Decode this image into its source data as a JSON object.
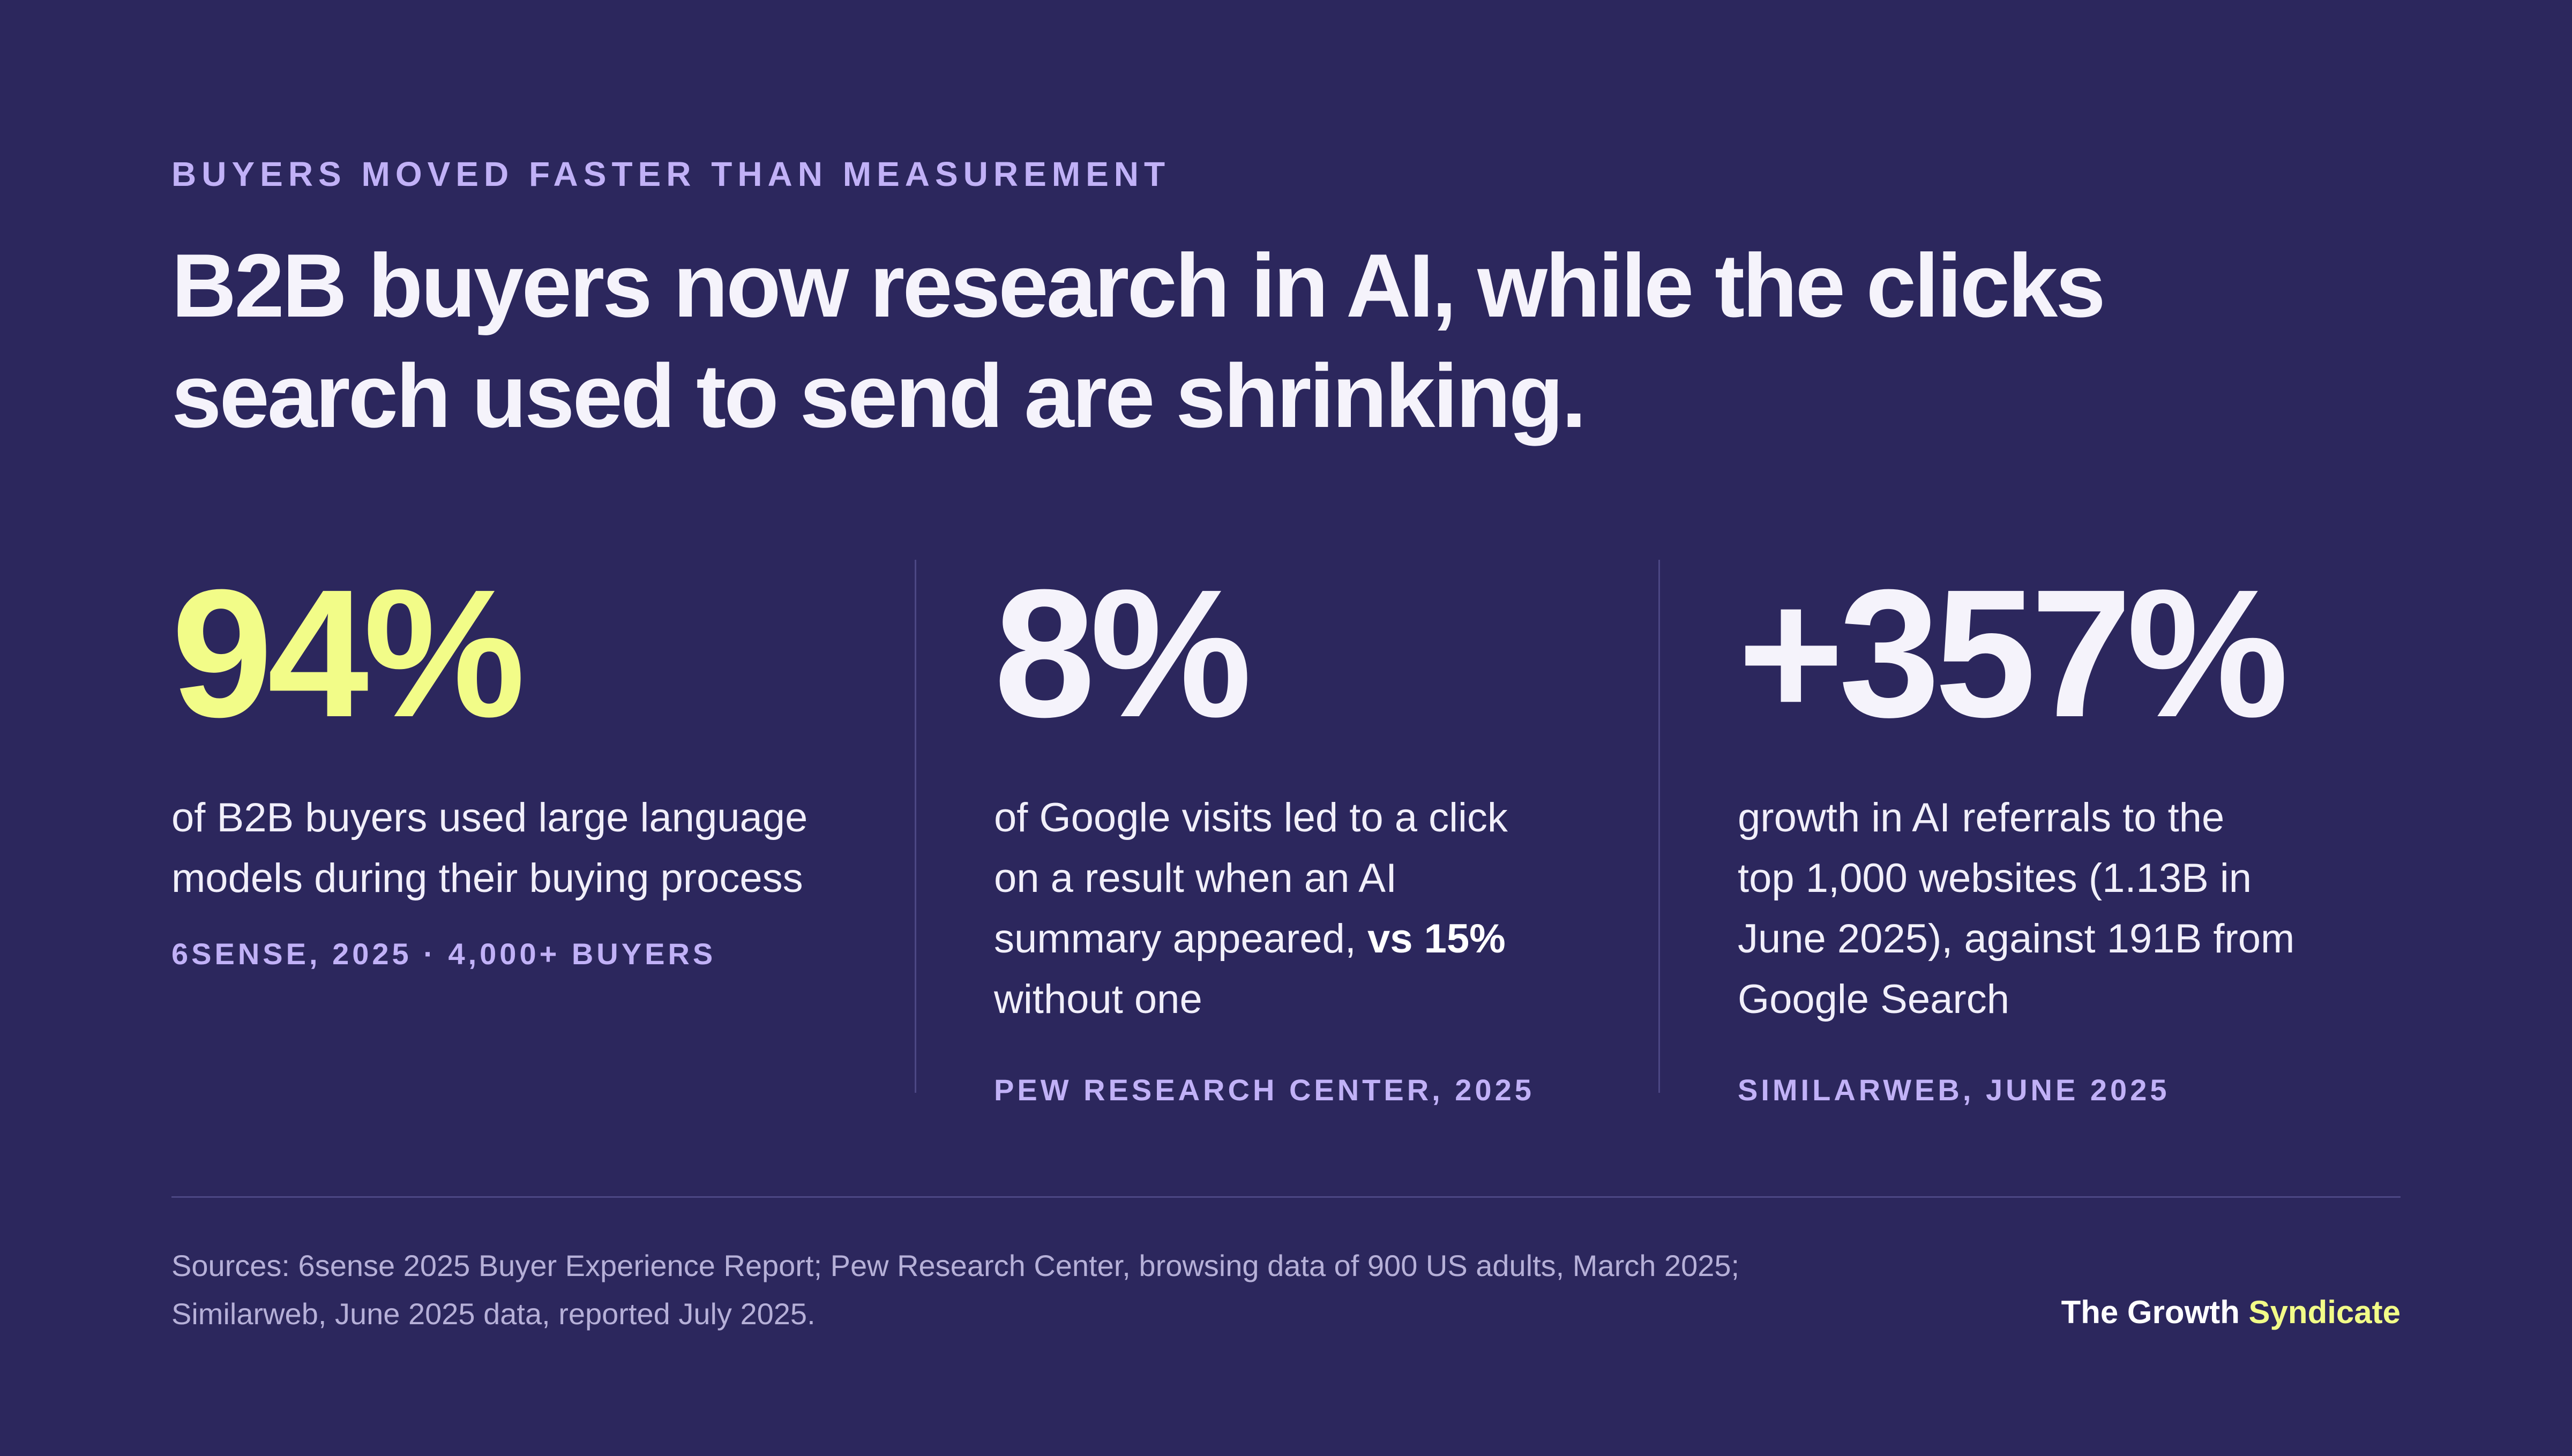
{
  "eyebrow": "BUYERS MOVED FASTER THAN MEASUREMENT",
  "headline": {
    "line1": "B2B buyers now research in AI, while the clicks",
    "line2": "search used to send are shrinking."
  },
  "stats": [
    {
      "value": "94%",
      "desc_line1": "of B2B buyers used large language",
      "desc_line2": "models during their buying process",
      "source": "6SENSE, 2025 · 4,000+ BUYERS"
    },
    {
      "value": "8%",
      "desc_line1": "of Google visits led to a click",
      "desc_line2": "on a result when an AI",
      "desc_line3_pre": "summary appeared, ",
      "desc_line3_bold": "vs 15%",
      "desc_line4": "without one",
      "source": "PEW RESEARCH CENTER, 2025"
    },
    {
      "value": "+357%",
      "desc_line1": "growth in AI referrals to the",
      "desc_line2": "top 1,000 websites (1.13B in",
      "desc_line3": "June 2025), against 191B from",
      "desc_line4": "Google Search",
      "source": "SIMILARWEB, JUNE 2025"
    }
  ],
  "footer": {
    "sources_line1": "Sources: 6sense 2025 Buyer Experience Report; Pew Research Center, browsing data of 900 US adults, March 2025;",
    "sources_line2": "Similarweb, June 2025 data, reported July 2025.",
    "brand_part1": "The Growth",
    "brand_part2": "Syndicate"
  },
  "colors": {
    "background": "#2c275d",
    "accent_yellow": "#f2fc88",
    "accent_lavender": "#c1b1f7",
    "text": "#f5f3fb"
  }
}
